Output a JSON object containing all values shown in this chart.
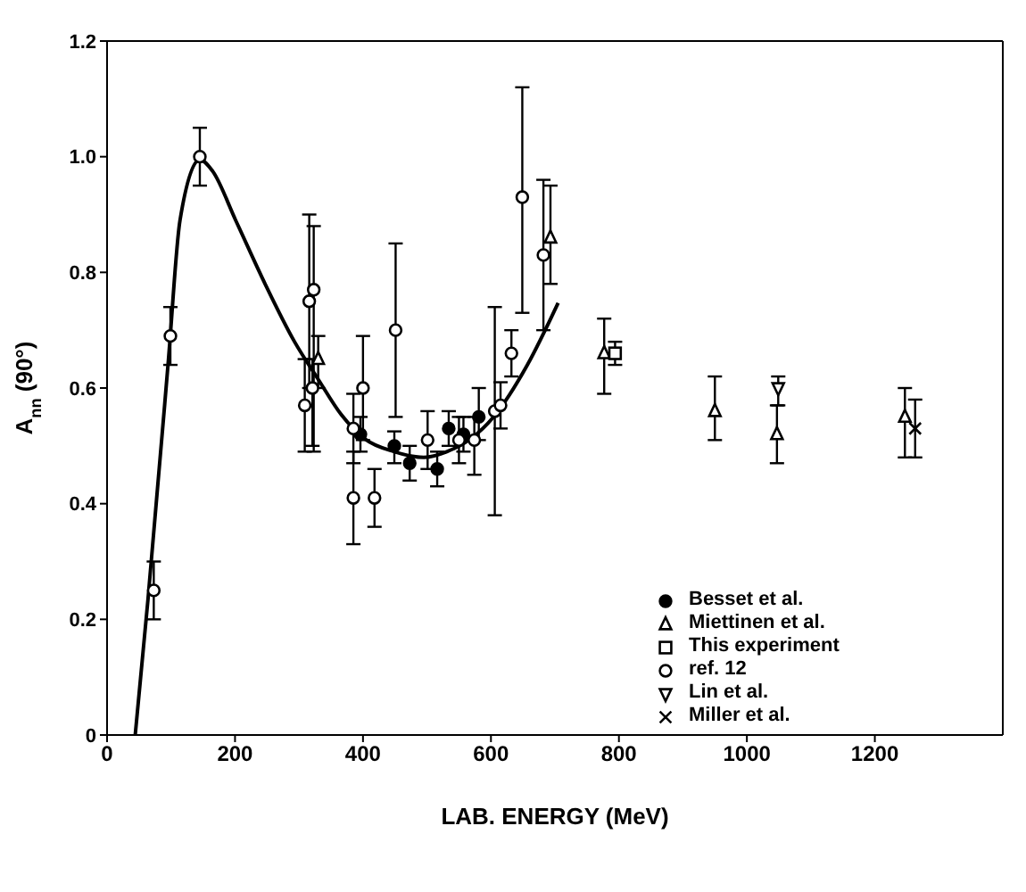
{
  "chart_data": {
    "type": "scatter",
    "xlabel": "LAB. ENERGY (MeV)",
    "ylabel": "A$_{nn}$ (90°)",
    "xlim": [
      0,
      1400
    ],
    "xticks": [
      0,
      200,
      400,
      600,
      800,
      1000,
      1200
    ],
    "ylim": [
      0,
      1.2
    ],
    "yticks": [
      0,
      0.2,
      0.4,
      0.6,
      0.8,
      {
        "value": 1,
        "label": "1.0"
      },
      1.2
    ],
    "grid": false,
    "legend": "bottom right",
    "series": [
      {
        "name": "Besset et  al.",
        "marker": "circle",
        "color": "#000000",
        "x": [
          396,
          449,
          473,
          516,
          534,
          557,
          581
        ],
        "values": [
          0.52,
          0.5,
          0.47,
          0.46,
          0.53,
          0.52,
          0.55
        ],
        "errors": [
          [
            0.49,
            0.55
          ],
          [
            0.47,
            0.525
          ],
          [
            0.44,
            0.5
          ],
          [
            0.43,
            0.49
          ],
          [
            0.5,
            0.56
          ],
          [
            0.49,
            0.55
          ],
          [
            0.51,
            0.6
          ]
        ]
      },
      {
        "name": "Miettinen et  al.",
        "marker": "triangle_open",
        "color": "#000000",
        "x": [
          330,
          693,
          777,
          950,
          1047,
          1247
        ],
        "values": [
          0.65,
          0.86,
          0.66,
          0.56,
          0.52,
          0.55
        ],
        "errors": [
          [
            0.6,
            0.69
          ],
          [
            0.78,
            0.95
          ],
          [
            0.59,
            0.72
          ],
          [
            0.51,
            0.62
          ],
          [
            0.47,
            0.57
          ],
          [
            0.48,
            0.6
          ]
        ]
      },
      {
        "name": "This experiment",
        "marker": "square_open",
        "color": "#000000",
        "x": [
          794
        ],
        "values": [
          0.66
        ],
        "errors": [
          [
            0.64,
            0.68
          ]
        ]
      },
      {
        "name": "ref. 12",
        "marker": "circle_open",
        "color": "#000000",
        "x": [
          73,
          99,
          145,
          309,
          316,
          321,
          323,
          385,
          385,
          400,
          418,
          451,
          501,
          550,
          574,
          606,
          615,
          632,
          649,
          682
        ],
        "values": [
          0.25,
          0.69,
          1.0,
          0.57,
          0.75,
          0.6,
          0.77,
          0.53,
          0.41,
          0.6,
          0.41,
          0.7,
          0.51,
          0.51,
          0.51,
          0.56,
          0.57,
          0.66,
          0.93,
          0.83
        ],
        "errors": [
          [
            0.2,
            0.3
          ],
          [
            0.64,
            0.74
          ],
          [
            0.95,
            1.05
          ],
          [
            0.49,
            0.65
          ],
          [
            0.6,
            0.9
          ],
          [
            0.5,
            0.65
          ],
          [
            0.49,
            0.88
          ],
          [
            0.47,
            0.59
          ],
          [
            0.33,
            0.49
          ],
          [
            0.51,
            0.69
          ],
          [
            0.36,
            0.46
          ],
          [
            0.55,
            0.85
          ],
          [
            0.46,
            0.56
          ],
          [
            0.47,
            0.55
          ],
          [
            0.45,
            0.55
          ],
          [
            0.38,
            0.74
          ],
          [
            0.53,
            0.61
          ],
          [
            0.62,
            0.7
          ],
          [
            0.73,
            1.12
          ],
          [
            0.7,
            0.96
          ]
        ]
      },
      {
        "name": "Lin et  al.",
        "marker": "triangle_down_open",
        "color": "#000000",
        "x": [
          1049
        ],
        "values": [
          0.6
        ],
        "errors": [
          [
            0.57,
            0.62
          ]
        ]
      },
      {
        "name": "Miller et  al.",
        "marker": "cross",
        "color": "#000000",
        "x": [
          1263
        ],
        "values": [
          0.53
        ],
        "errors": [
          [
            0.48,
            0.58
          ]
        ]
      },
      {
        "type": "line",
        "marker": "none",
        "color": "#000000",
        "x": [
          44,
          64,
          96,
          114,
          145,
          165,
          201,
          247,
          293,
          330,
          366,
          403,
          449,
          495,
          531,
          568,
          604,
          657,
          705
        ],
        "values": [
          0,
          0.235,
          0.65,
          0.89,
          0.995,
          0.975,
          0.89,
          0.78,
          0.68,
          0.615,
          0.554,
          0.512,
          0.49,
          0.48,
          0.49,
          0.512,
          0.55,
          0.64,
          0.747
        ]
      }
    ]
  }
}
